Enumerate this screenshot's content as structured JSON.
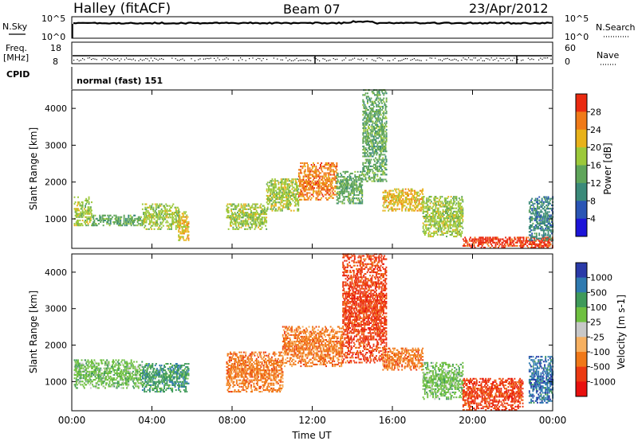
{
  "header": {
    "station": "Halley (fitACF)",
    "beam": "Beam 07",
    "date": "23/Apr/2012"
  },
  "summary_panels": {
    "nsky_label": "N.Sky",
    "nsky_ticks_left": [
      "10^5",
      "10^0"
    ],
    "nsearch_label": "N.Search",
    "nsearch_ticks_right": [
      "10^5",
      "10^0"
    ],
    "freq_label": "Freq.",
    "freq_unit": "[MHz]",
    "freq_ticks": [
      "18",
      "8"
    ],
    "nave_label": "Nave",
    "nave_ticks": [
      "60",
      "0"
    ],
    "cpid_label": "CPID",
    "cpid_value": "normal (fast) 151"
  },
  "chart_data": [
    {
      "type": "heatmap",
      "name": "power",
      "ylabel": "Slant Range [km]",
      "xlabel": "Time UT",
      "ylim": [
        200,
        4500
      ],
      "xlim": [
        0,
        24
      ],
      "ytick_labels": [
        "1000",
        "2000",
        "3000",
        "4000"
      ],
      "xtick_labels": [
        "00:00",
        "04:00",
        "08:00",
        "12:00",
        "16:00",
        "20:00",
        "00:00"
      ],
      "colorbar": {
        "label": "Power [dB]",
        "ticks": [
          "4",
          "8",
          "12",
          "16",
          "20",
          "24",
          "28"
        ],
        "colors": [
          "#1c14d8",
          "#2a55b5",
          "#3b8a7a",
          "#5fa55a",
          "#9cc93a",
          "#e8b21a",
          "#f07a18",
          "#ea2a10"
        ]
      },
      "echo_regions": [
        {
          "t_start": 0.1,
          "t_end": 1.0,
          "r_min": 800,
          "r_max": 1600,
          "level": 16
        },
        {
          "t_start": 1.0,
          "t_end": 3.5,
          "r_min": 800,
          "r_max": 1100,
          "level": 12
        },
        {
          "t_start": 3.5,
          "t_end": 5.3,
          "r_min": 700,
          "r_max": 1400,
          "level": 16
        },
        {
          "t_start": 5.3,
          "t_end": 5.8,
          "r_min": 400,
          "r_max": 1200,
          "level": 20
        },
        {
          "t_start": 7.7,
          "t_end": 9.7,
          "r_min": 700,
          "r_max": 1400,
          "level": 16
        },
        {
          "t_start": 9.7,
          "t_end": 11.3,
          "r_min": 1200,
          "r_max": 2100,
          "level": 16
        },
        {
          "t_start": 11.3,
          "t_end": 13.2,
          "r_min": 1500,
          "r_max": 2500,
          "level": 24
        },
        {
          "t_start": 13.2,
          "t_end": 14.5,
          "r_min": 1400,
          "r_max": 2300,
          "level": 12
        },
        {
          "t_start": 14.5,
          "t_end": 15.7,
          "r_min": 2000,
          "r_max": 4500,
          "level": 12
        },
        {
          "t_start": 15.5,
          "t_end": 17.5,
          "r_min": 1200,
          "r_max": 1800,
          "level": 20
        },
        {
          "t_start": 17.5,
          "t_end": 19.5,
          "r_min": 500,
          "r_max": 1600,
          "level": 16
        },
        {
          "t_start": 19.5,
          "t_end": 24.0,
          "r_min": 200,
          "r_max": 500,
          "level": 28
        },
        {
          "t_start": 22.8,
          "t_end": 24.0,
          "r_min": 400,
          "r_max": 1600,
          "level": 8
        }
      ]
    },
    {
      "type": "heatmap",
      "name": "velocity",
      "ylabel": "Slant Range [km]",
      "xlabel": "Time UT",
      "ylim": [
        200,
        4500
      ],
      "xlim": [
        0,
        24
      ],
      "ytick_labels": [
        "1000",
        "2000",
        "3000",
        "4000"
      ],
      "xtick_labels": [
        "00:00",
        "04:00",
        "08:00",
        "12:00",
        "16:00",
        "20:00",
        "00:00"
      ],
      "colorbar": {
        "label": "Velocity [m s-1]",
        "ticks": [
          "1000",
          "500",
          "100",
          "25",
          "-25",
          "-100",
          "-500",
          "-1000"
        ],
        "colors": [
          "#2a3aa8",
          "#2f7ab0",
          "#3f9a5a",
          "#6fc040",
          "#c8c8c8",
          "#f7b060",
          "#f07818",
          "#ec3a12",
          "#e8100e"
        ]
      },
      "echo_regions": [
        {
          "t_start": 0.1,
          "t_end": 3.5,
          "r_min": 800,
          "r_max": 1600,
          "level": 100
        },
        {
          "t_start": 3.5,
          "t_end": 5.8,
          "r_min": 700,
          "r_max": 1500,
          "level": 500
        },
        {
          "t_start": 7.7,
          "t_end": 10.5,
          "r_min": 700,
          "r_max": 1800,
          "level": -100
        },
        {
          "t_start": 10.5,
          "t_end": 13.5,
          "r_min": 1400,
          "r_max": 2500,
          "level": -100
        },
        {
          "t_start": 13.5,
          "t_end": 15.7,
          "r_min": 1500,
          "r_max": 4500,
          "level": -500
        },
        {
          "t_start": 15.5,
          "t_end": 17.5,
          "r_min": 1300,
          "r_max": 1900,
          "level": -100
        },
        {
          "t_start": 17.5,
          "t_end": 19.5,
          "r_min": 500,
          "r_max": 1500,
          "level": 100
        },
        {
          "t_start": 19.5,
          "t_end": 22.5,
          "r_min": 200,
          "r_max": 1100,
          "level": -500
        },
        {
          "t_start": 22.8,
          "t_end": 24.0,
          "r_min": 400,
          "r_max": 1700,
          "level": 1000
        }
      ]
    }
  ]
}
